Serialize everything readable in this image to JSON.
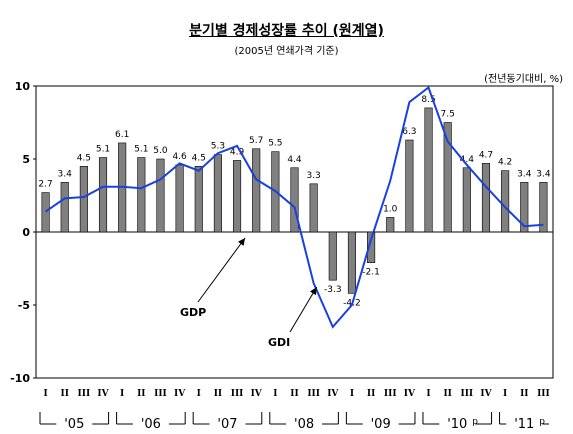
{
  "title": "분기별 경제성장률 추이 (원계열)",
  "subtitle": "(2005년 연쇄가격 기준)",
  "unit": "(전년동기대비, %)",
  "chart_data": {
    "type": "bar",
    "categories": [
      "I",
      "II",
      "III",
      "IV",
      "I",
      "II",
      "III",
      "IV",
      "I",
      "II",
      "III",
      "IV",
      "I",
      "II",
      "III",
      "IV",
      "I",
      "II",
      "III",
      "IV",
      "I",
      "II",
      "III",
      "IV",
      "I",
      "II",
      "III"
    ],
    "year_labels": [
      "'05",
      "'06",
      "'07",
      "'08",
      "'09",
      "'10",
      "'11"
    ],
    "year_suffix": {
      "'10": "p",
      "'11": "p"
    },
    "ylim": [
      -10,
      10
    ],
    "yticks": [
      10,
      5,
      0,
      -5,
      -10
    ],
    "series": [
      {
        "name": "GDP",
        "kind": "bar",
        "values": [
          2.7,
          3.4,
          4.5,
          5.1,
          6.1,
          5.1,
          5.0,
          4.6,
          4.5,
          5.3,
          4.9,
          5.7,
          5.5,
          4.4,
          3.3,
          -3.3,
          -4.2,
          -2.1,
          1.0,
          6.3,
          8.5,
          7.5,
          4.4,
          4.7,
          4.2,
          3.4,
          3.4
        ]
      },
      {
        "name": "GDI",
        "kind": "line",
        "values": [
          1.4,
          2.3,
          2.4,
          3.1,
          3.1,
          3.0,
          3.6,
          4.7,
          4.2,
          5.4,
          5.9,
          3.6,
          2.8,
          1.7,
          -3.5,
          -6.5,
          -5.0,
          -0.5,
          3.5,
          8.9,
          9.9,
          6.2,
          4.6,
          3.1,
          1.7,
          0.4,
          0.5
        ]
      }
    ],
    "bar_labels": [
      "2.7",
      "3.4",
      "4.5",
      "5.1",
      "6.1",
      "5.1",
      "5.0",
      "4.6",
      "4.5",
      "5.3",
      "4.9",
      "5.7",
      "5.5",
      "4.4",
      "3.3",
      "-3.3",
      "-4.2",
      "-2.1",
      "1.0",
      "6.3",
      "8.5",
      "7.5",
      "4.4",
      "4.7",
      "4.2",
      "3.4",
      "3.4"
    ],
    "annotations": {
      "gdp": "GDP",
      "gdi": "GDI"
    },
    "colors": {
      "bar": "#808080",
      "bar_stroke": "#000000",
      "line": "#1a40e0"
    }
  }
}
